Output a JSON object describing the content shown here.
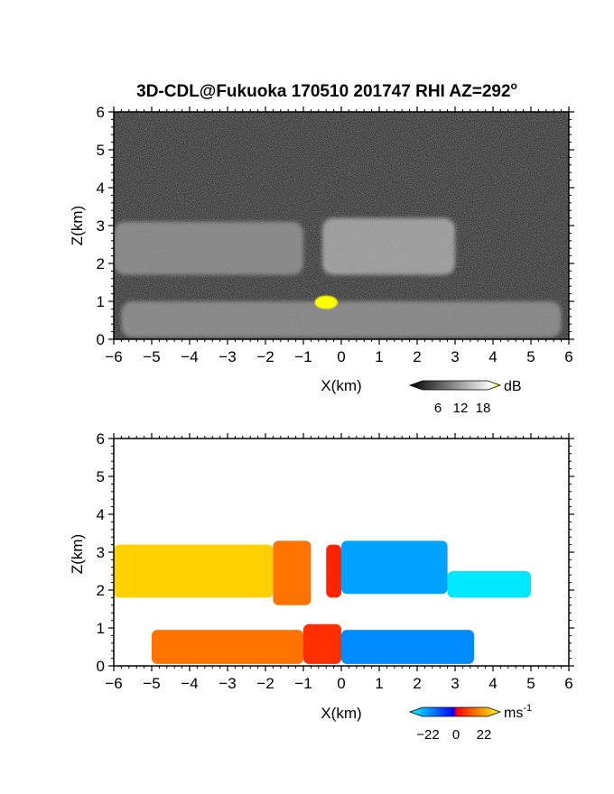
{
  "title": "3D-CDL@Fukuoka 170510 201747 RHI AZ=292",
  "title_degree": "o",
  "chart_data": [
    {
      "type": "heatmap",
      "quantity": "reflectivity",
      "xlabel": "X(km)",
      "ylabel": "Z(km)",
      "xlim": [
        -6,
        6
      ],
      "ylim": [
        0,
        6
      ],
      "xticks": [
        "-6",
        "-5",
        "-4",
        "-3",
        "-2",
        "-1",
        "0",
        "1",
        "2",
        "3",
        "4",
        "5",
        "6"
      ],
      "yticks": [
        "0",
        "1",
        "2",
        "3",
        "4",
        "5",
        "6"
      ],
      "colorbar": {
        "unit": "dB",
        "tick_labels": [
          "6",
          "12",
          "18"
        ],
        "colors": [
          "#000000",
          "#2a2a2a",
          "#555555",
          "#808080",
          "#aaaaaa",
          "#d5d5d5",
          "#ffffff",
          "#ffff00"
        ]
      },
      "features": [
        {
          "region": "cloud layer left",
          "x": [
            -6.0,
            -1.0
          ],
          "z": [
            1.7,
            3.1
          ],
          "level_db": 12
        },
        {
          "region": "cloud layer right",
          "x": [
            -0.5,
            3.0
          ],
          "z": [
            1.7,
            3.2
          ],
          "level_db": 14
        },
        {
          "region": "low echo layer",
          "x": [
            -5.8,
            5.8
          ],
          "z": [
            0.05,
            1.0
          ],
          "level_db": 12
        },
        {
          "region": "strong echo",
          "x": [
            -0.7,
            -0.1
          ],
          "z": [
            0.8,
            1.15
          ],
          "level_db": 20
        }
      ]
    },
    {
      "type": "heatmap",
      "quantity": "doppler velocity",
      "xlabel": "X(km)",
      "ylabel": "Z(km)",
      "xlim": [
        -6,
        6
      ],
      "ylim": [
        0,
        6
      ],
      "xticks": [
        "-6",
        "-5",
        "-4",
        "-3",
        "-2",
        "-1",
        "0",
        "1",
        "2",
        "3",
        "4",
        "5",
        "6"
      ],
      "yticks": [
        "0",
        "1",
        "2",
        "3",
        "4",
        "5",
        "6"
      ],
      "colorbar": {
        "unit": "ms",
        "unit_exponent": "-1",
        "tick_labels": [
          "−22",
          "0",
          "22"
        ],
        "colors": [
          "#00ffff",
          "#0080ff",
          "#0000ff",
          "#ff0000",
          "#ff8000",
          "#ffff00"
        ]
      },
      "features": [
        {
          "region": "upper left",
          "x": [
            -6.0,
            -1.8
          ],
          "z": [
            1.8,
            3.2
          ],
          "velocity": 18
        },
        {
          "region": "upper streak",
          "x": [
            -1.8,
            -0.8
          ],
          "z": [
            1.6,
            3.3
          ],
          "velocity": 10
        },
        {
          "region": "upper near left",
          "x": [
            -0.4,
            0.0
          ],
          "z": [
            1.8,
            3.2
          ],
          "velocity": 3
        },
        {
          "region": "upper right",
          "x": [
            0.0,
            2.8
          ],
          "z": [
            1.9,
            3.3
          ],
          "velocity": -14
        },
        {
          "region": "upper far right",
          "x": [
            2.8,
            5.0
          ],
          "z": [
            1.8,
            2.5
          ],
          "velocity": -20
        },
        {
          "region": "lower left",
          "x": [
            -5.0,
            -1.0
          ],
          "z": [
            0.05,
            0.95
          ],
          "velocity": 10
        },
        {
          "region": "lower near left",
          "x": [
            -1.0,
            0.0
          ],
          "z": [
            0.05,
            1.1
          ],
          "velocity": 4
        },
        {
          "region": "lower right",
          "x": [
            0.0,
            3.5
          ],
          "z": [
            0.05,
            0.95
          ],
          "velocity": -12
        }
      ]
    }
  ]
}
